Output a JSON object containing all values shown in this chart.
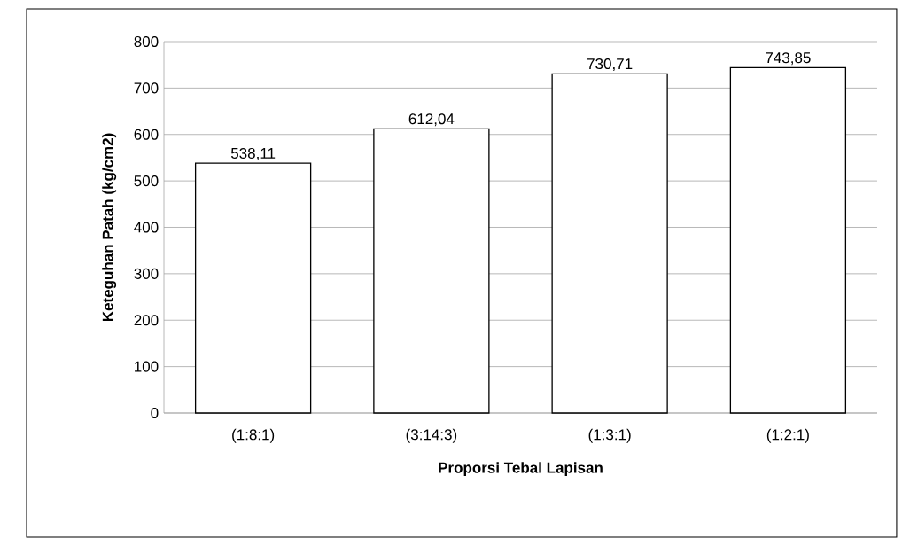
{
  "chart_data": {
    "type": "bar",
    "xlabel": "Proporsi Tebal Lapisan",
    "ylabel": "Keteguhan Patah (kg/cm2)",
    "categories": [
      "(1:8:1)",
      "(3:14:3)",
      "(1:3:1)",
      "(1:2:1)"
    ],
    "values": [
      538.11,
      612.04,
      730.71,
      743.85
    ],
    "value_labels": [
      "538,11",
      "612,04",
      "730,71",
      "743,85"
    ],
    "color": "#ffffff",
    "ylim": [
      0,
      800
    ],
    "yticks": [
      0,
      100,
      200,
      300,
      400,
      500,
      600,
      700,
      800
    ],
    "grid": "y"
  }
}
